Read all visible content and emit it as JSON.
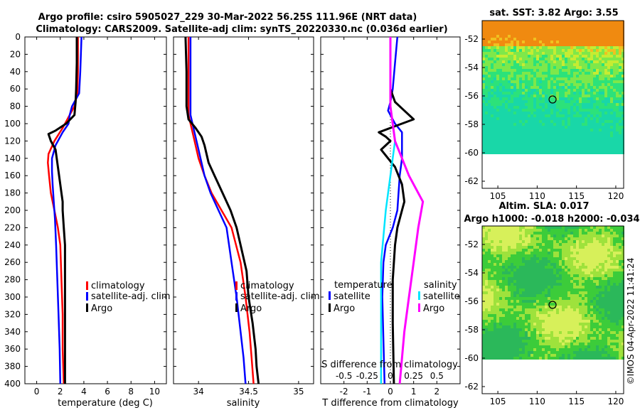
{
  "header": {
    "title_line1": "Argo profile: csiro 5905027_229 30-Mar-2022 56.25S 111.96E (NRT data)",
    "title_line2": "Climatology: CARS2009. Satellite-adj clim: synTS_20220330.nc (0.036d earlier)"
  },
  "colors": {
    "climatology": "#ff0000",
    "satellite": "#0000ff",
    "argo": "#000000",
    "sal_satellite": "#00e5ff",
    "sal_argo": "#ff00ff"
  },
  "chart_data": [
    {
      "type": "line",
      "name": "temperature-profile",
      "xlabel": "temperature (deg C)",
      "ylabel": "",
      "xlim": [
        -1,
        11
      ],
      "ylim": [
        400,
        0
      ],
      "xticks": [
        "0",
        "2",
        "4",
        "6",
        "8",
        "10"
      ],
      "xtick_values": [
        0,
        2,
        4,
        6,
        8,
        10
      ],
      "yticks": [
        "0",
        "20",
        "40",
        "60",
        "80",
        "100",
        "120",
        "140",
        "160",
        "180",
        "200",
        "220",
        "240",
        "260",
        "280",
        "300",
        "320",
        "340",
        "360",
        "380",
        "400"
      ],
      "ytick_values": [
        0,
        20,
        40,
        60,
        80,
        100,
        120,
        140,
        160,
        180,
        200,
        220,
        240,
        260,
        280,
        300,
        320,
        340,
        360,
        380,
        400
      ],
      "legend": [
        "climatology",
        "satellite-adj. clim",
        "Argo"
      ],
      "series": [
        {
          "name": "climatology",
          "color": "#ff0000",
          "points": [
            [
              3.5,
              0
            ],
            [
              3.5,
              40
            ],
            [
              3.45,
              65
            ],
            [
              3.2,
              80
            ],
            [
              2.8,
              90
            ],
            [
              2.2,
              105
            ],
            [
              1.5,
              120
            ],
            [
              1.0,
              135
            ],
            [
              0.95,
              145
            ],
            [
              1.05,
              160
            ],
            [
              1.2,
              180
            ],
            [
              1.5,
              200
            ],
            [
              1.8,
              220
            ],
            [
              2.0,
              240
            ],
            [
              2.1,
              280
            ],
            [
              2.2,
              320
            ],
            [
              2.2,
              360
            ],
            [
              2.3,
              400
            ]
          ]
        },
        {
          "name": "satellite-adj. clim",
          "color": "#0000ff",
          "points": [
            [
              3.8,
              0
            ],
            [
              3.7,
              40
            ],
            [
              3.6,
              65
            ],
            [
              3.0,
              80
            ],
            [
              2.8,
              90
            ],
            [
              2.7,
              100
            ],
            [
              2.2,
              110
            ],
            [
              1.6,
              125
            ],
            [
              1.3,
              140
            ],
            [
              1.3,
              155
            ],
            [
              1.35,
              170
            ],
            [
              1.45,
              190
            ],
            [
              1.55,
              210
            ],
            [
              1.65,
              240
            ],
            [
              1.75,
              280
            ],
            [
              1.85,
              320
            ],
            [
              1.95,
              360
            ],
            [
              2.0,
              400
            ]
          ]
        },
        {
          "name": "Argo",
          "color": "#000000",
          "points": [
            [
              3.4,
              0
            ],
            [
              3.4,
              30
            ],
            [
              3.35,
              60
            ],
            [
              3.3,
              75
            ],
            [
              3.2,
              90
            ],
            [
              2.5,
              100
            ],
            [
              1.6,
              108
            ],
            [
              1.0,
              112
            ],
            [
              1.2,
              120
            ],
            [
              1.6,
              130
            ],
            [
              1.9,
              160
            ],
            [
              2.1,
              180
            ],
            [
              2.2,
              190
            ],
            [
              2.2,
              200
            ],
            [
              2.3,
              220
            ],
            [
              2.4,
              240
            ],
            [
              2.4,
              300
            ],
            [
              2.4,
              360
            ],
            [
              2.4,
              400
            ]
          ]
        }
      ]
    },
    {
      "type": "line",
      "name": "salinity-profile",
      "xlabel": "salinity",
      "xlim": [
        33.75,
        35.15
      ],
      "ylim": [
        400,
        0
      ],
      "xticks": [
        "34",
        "34.5",
        "35"
      ],
      "xtick_values": [
        34,
        34.5,
        35
      ],
      "legend": [
        "climatology",
        "satellite-adj. clim",
        "Argo"
      ],
      "series": [
        {
          "name": "climatology",
          "color": "#ff0000",
          "points": [
            [
              33.9,
              0
            ],
            [
              33.9,
              60
            ],
            [
              33.9,
              90
            ],
            [
              33.92,
              100
            ],
            [
              33.96,
              120
            ],
            [
              34.0,
              140
            ],
            [
              34.06,
              160
            ],
            [
              34.13,
              180
            ],
            [
              34.23,
              200
            ],
            [
              34.33,
              220
            ],
            [
              34.42,
              260
            ],
            [
              34.47,
              300
            ],
            [
              34.51,
              340
            ],
            [
              34.53,
              370
            ],
            [
              34.55,
              400
            ]
          ]
        },
        {
          "name": "satellite-adj. clim",
          "color": "#0000ff",
          "points": [
            [
              33.92,
              0
            ],
            [
              33.92,
              60
            ],
            [
              33.92,
              90
            ],
            [
              33.95,
              105
            ],
            [
              34.0,
              130
            ],
            [
              34.06,
              160
            ],
            [
              34.12,
              180
            ],
            [
              34.2,
              200
            ],
            [
              34.28,
              220
            ],
            [
              34.33,
              260
            ],
            [
              34.38,
              300
            ],
            [
              34.42,
              340
            ],
            [
              34.45,
              370
            ],
            [
              34.47,
              400
            ]
          ]
        },
        {
          "name": "Argo",
          "color": "#000000",
          "points": [
            [
              33.87,
              0
            ],
            [
              33.88,
              40
            ],
            [
              33.88,
              80
            ],
            [
              33.9,
              95
            ],
            [
              33.97,
              105
            ],
            [
              34.03,
              115
            ],
            [
              34.06,
              125
            ],
            [
              34.1,
              145
            ],
            [
              34.16,
              160
            ],
            [
              34.24,
              180
            ],
            [
              34.32,
              200
            ],
            [
              34.38,
              220
            ],
            [
              34.44,
              250
            ],
            [
              34.48,
              270
            ],
            [
              34.5,
              300
            ],
            [
              34.54,
              330
            ],
            [
              34.57,
              360
            ],
            [
              34.58,
              380
            ],
            [
              34.6,
              400
            ]
          ]
        }
      ]
    },
    {
      "type": "line",
      "name": "difference-profile",
      "xlabel": "T difference from climatology",
      "xlabel_top": "S difference from climatology",
      "xlim": [
        -3,
        3
      ],
      "ylim": [
        400,
        0
      ],
      "xticks": [
        "-2",
        "-1",
        "0",
        "1",
        "2"
      ],
      "xtick_values": [
        -2,
        -1,
        0,
        1,
        2
      ],
      "sticks": [
        "-0.5",
        "-0.25",
        "0",
        "0.25",
        "0.5"
      ],
      "stick_values": [
        -0.5,
        -0.25,
        0,
        0.25,
        0.5
      ],
      "legend_temp_title": "temperature",
      "legend_sal_title": "salinity",
      "legend": [
        "satellite",
        "Argo",
        "satellite",
        "Argo"
      ],
      "series": [
        {
          "name": "temperature satellite",
          "color": "#0000ff",
          "points": [
            [
              0.3,
              0
            ],
            [
              0.2,
              30
            ],
            [
              0.1,
              60
            ],
            [
              0.0,
              75
            ],
            [
              -0.1,
              85
            ],
            [
              0.2,
              100
            ],
            [
              0.5,
              110
            ],
            [
              0.5,
              140
            ],
            [
              0.4,
              160
            ],
            [
              0.3,
              200
            ],
            [
              0.1,
              220
            ],
            [
              -0.2,
              240
            ],
            [
              -0.3,
              260
            ],
            [
              -0.35,
              300
            ],
            [
              -0.3,
              350
            ],
            [
              -0.25,
              400
            ]
          ]
        },
        {
          "name": "temperature Argo",
          "color": "#000000",
          "points": [
            [
              0.0,
              0
            ],
            [
              0.0,
              60
            ],
            [
              0.2,
              75
            ],
            [
              0.6,
              85
            ],
            [
              1.0,
              95
            ],
            [
              0.3,
              102
            ],
            [
              -0.5,
              110
            ],
            [
              -0.2,
              115
            ],
            [
              0.0,
              120
            ],
            [
              -0.4,
              130
            ],
            [
              0.2,
              150
            ],
            [
              0.5,
              170
            ],
            [
              0.6,
              190
            ],
            [
              0.5,
              200
            ],
            [
              0.3,
              220
            ],
            [
              0.2,
              240
            ],
            [
              0.1,
              280
            ],
            [
              0.1,
              330
            ],
            [
              0.15,
              400
            ]
          ]
        },
        {
          "name": "salinity satellite",
          "color": "#00e5ff",
          "points": [
            [
              0.0,
              0
            ],
            [
              0.0,
              80
            ],
            [
              0.05,
              120
            ],
            [
              0.0,
              160
            ],
            [
              -0.05,
              200
            ],
            [
              -0.1,
              260
            ],
            [
              -0.1,
              320
            ],
            [
              -0.1,
              400
            ]
          ]
        },
        {
          "name": "salinity Argo",
          "color": "#ff00ff",
          "points": [
            [
              0.0,
              0
            ],
            [
              0.0,
              80
            ],
            [
              0.05,
              120
            ],
            [
              0.2,
              160
            ],
            [
              0.35,
              190
            ],
            [
              0.3,
              220
            ],
            [
              0.25,
              260
            ],
            [
              0.2,
              300
            ],
            [
              0.15,
              340
            ],
            [
              0.1,
              400
            ]
          ]
        }
      ]
    },
    {
      "type": "heatmap",
      "name": "sst-map",
      "title": "sat. SST: 3.82 Argo: 3.55",
      "xlim": [
        103,
        121
      ],
      "ylim": [
        -62.5,
        -50.7
      ],
      "xticks": [
        "105",
        "110",
        "115",
        "120"
      ],
      "xtick_values": [
        105,
        110,
        115,
        120
      ],
      "yticks": [
        "-52",
        "-54",
        "-56",
        "-58",
        "-60",
        "-62"
      ],
      "ytick_values": [
        -52,
        -54,
        -56,
        -58,
        -60,
        -62
      ],
      "data_ylim_bottom": -60,
      "marker": [
        111.96,
        -56.25
      ]
    },
    {
      "type": "heatmap",
      "name": "sla-map",
      "title": "Altim. SLA: 0.017",
      "subtitle": "Argo h1000: -0.018 h2000: -0.034",
      "xlim": [
        103,
        121
      ],
      "ylim": [
        -62.5,
        -50.7
      ],
      "xticks": [
        "105",
        "110",
        "115",
        "120"
      ],
      "xtick_values": [
        105,
        110,
        115,
        120
      ],
      "yticks": [
        "-52",
        "-54",
        "-56",
        "-58",
        "-60",
        "-62"
      ],
      "ytick_values": [
        -52,
        -54,
        -56,
        -58,
        -60,
        -62
      ],
      "data_ylim_bottom": -60,
      "marker": [
        111.96,
        -56.25
      ]
    }
  ],
  "footer": {
    "credit": "©IMOS 04-Apr-2022 11:41:24"
  }
}
